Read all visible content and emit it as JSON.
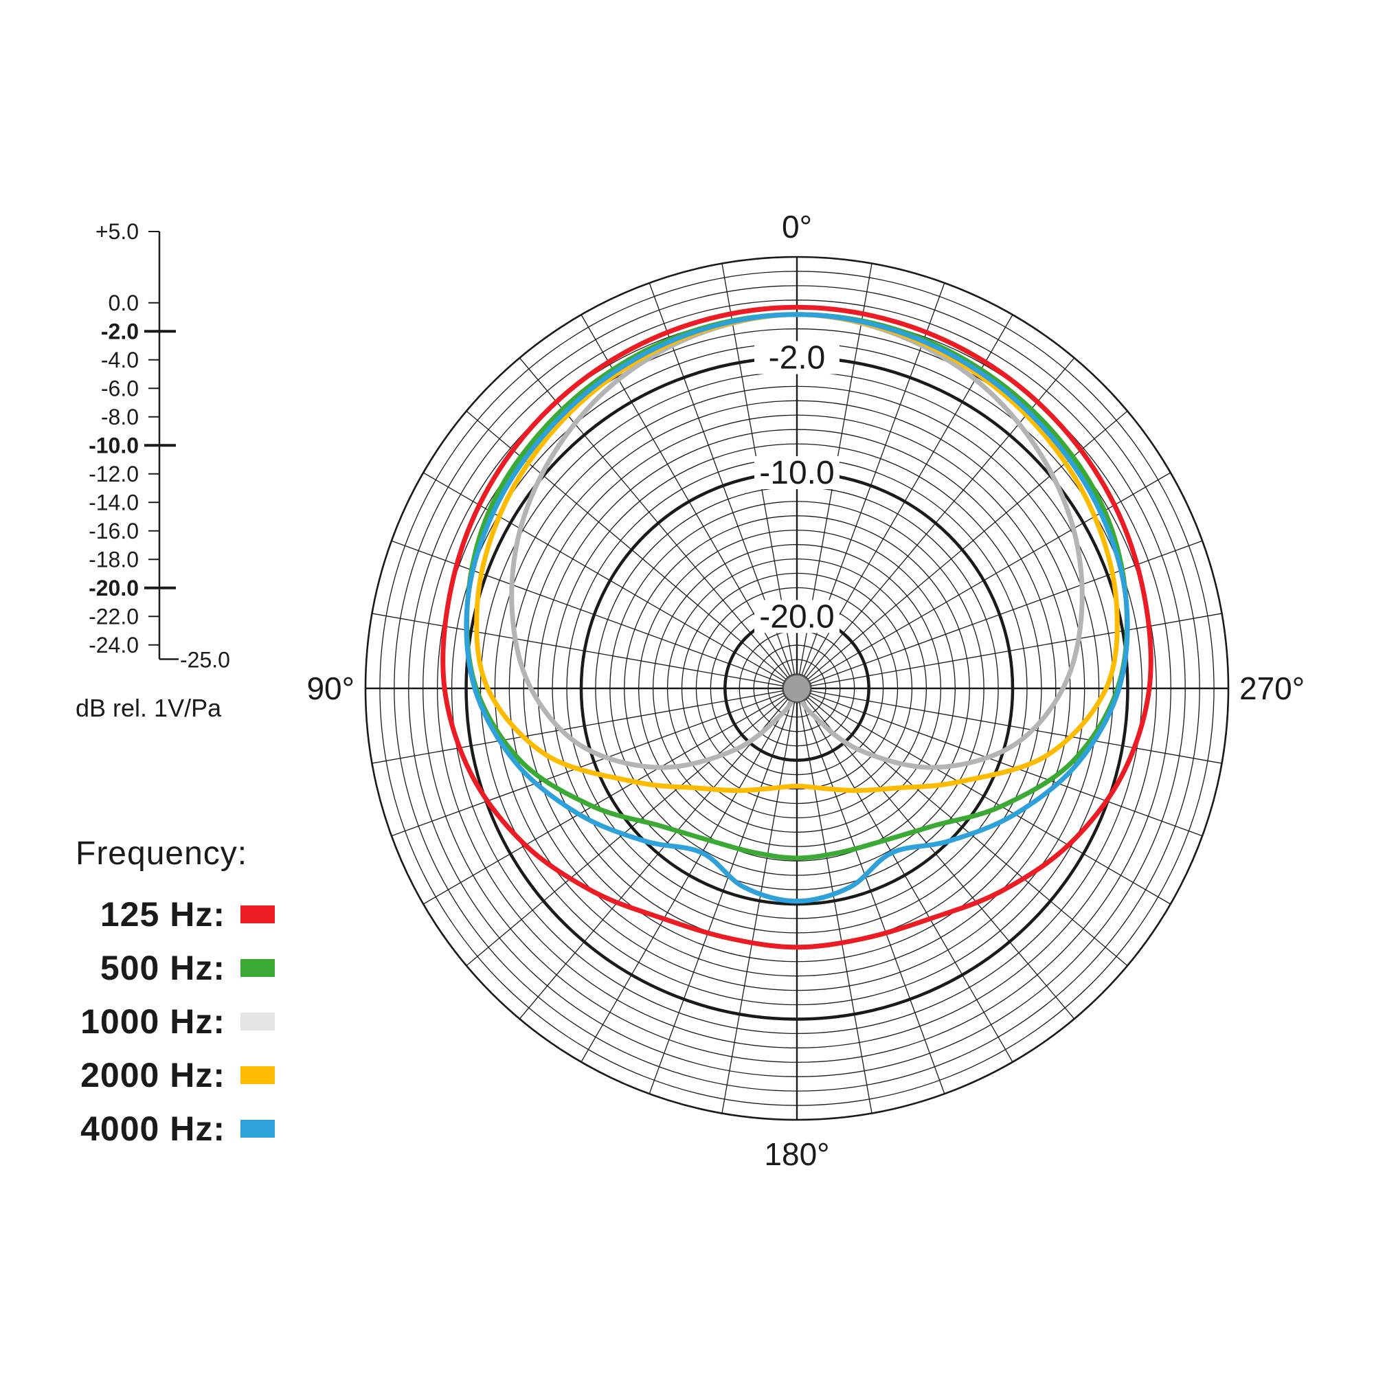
{
  "chart_data": {
    "type": "polar",
    "angle_labels": [
      {
        "angle": 0,
        "text": "0°"
      },
      {
        "angle": 90,
        "text": "90°"
      },
      {
        "angle": 180,
        "text": "180°"
      },
      {
        "angle": 270,
        "text": "270°"
      }
    ],
    "ring_labels": [
      {
        "value": -2.0,
        "text": "-2.0"
      },
      {
        "value": -10.0,
        "text": "-10.0"
      },
      {
        "value": -20.0,
        "text": "-20.0"
      }
    ],
    "rlim": [
      -25,
      5
    ],
    "scale_ticks": [
      {
        "value": 5.0,
        "text": "+5.0",
        "bold": false
      },
      {
        "value": 0.0,
        "text": "0.0",
        "bold": false
      },
      {
        "value": -2.0,
        "text": "-2.0",
        "bold": true
      },
      {
        "value": -4.0,
        "text": "-4.0",
        "bold": false
      },
      {
        "value": -6.0,
        "text": "-6.0",
        "bold": false
      },
      {
        "value": -8.0,
        "text": "-8.0",
        "bold": false
      },
      {
        "value": -10.0,
        "text": "-10.0",
        "bold": true
      },
      {
        "value": -12.0,
        "text": "-12.0",
        "bold": false
      },
      {
        "value": -14.0,
        "text": "-14.0",
        "bold": false
      },
      {
        "value": -16.0,
        "text": "-16.0",
        "bold": false
      },
      {
        "value": -18.0,
        "text": "-18.0",
        "bold": false
      },
      {
        "value": -20.0,
        "text": "-20.0",
        "bold": true
      },
      {
        "value": -22.0,
        "text": "-22.0",
        "bold": false
      },
      {
        "value": -24.0,
        "text": "-24.0",
        "bold": false
      },
      {
        "value": -25.0,
        "text": "-25.0",
        "bold": false
      }
    ],
    "scale_unit": "dB rel. 1V/Pa",
    "legend_title": "Frequency:",
    "grid": true,
    "angles": [
      0,
      15,
      30,
      45,
      60,
      75,
      90,
      105,
      120,
      135,
      150,
      165,
      180
    ],
    "series": [
      {
        "name": "125 Hz:",
        "color": "#ec1c24",
        "values": [
          1.5,
          1.4,
          1.2,
          0.9,
          0.5,
          0.0,
          -0.5,
          -1.6,
          -3.2,
          -5.0,
          -6.5,
          -7.0,
          -7.0
        ]
      },
      {
        "name": "500 Hz:",
        "color": "#3aaa35",
        "values": [
          1.0,
          0.9,
          0.6,
          0.2,
          -0.3,
          -1.3,
          -2.7,
          -5.2,
          -8.6,
          -11.5,
          -12.8,
          -13.2,
          -13.2
        ]
      },
      {
        "name": "1000 Hz:",
        "color": "#b4b4b4",
        "values": [
          1.0,
          0.6,
          -0.2,
          -1.4,
          -2.8,
          -4.5,
          -6.5,
          -9.5,
          -14.0,
          -19.0,
          -23.0,
          -24.6,
          -25.0
        ]
      },
      {
        "name": "2000 Hz:",
        "color": "#ffbb00",
        "values": [
          1.0,
          0.7,
          0.2,
          -0.4,
          -1.1,
          -2.0,
          -3.5,
          -7.0,
          -12.0,
          -15.2,
          -16.8,
          -17.8,
          -18.2
        ]
      },
      {
        "name": "4000 Hz:",
        "color": "#2ea1db",
        "values": [
          1.0,
          0.8,
          0.4,
          -0.1,
          -0.6,
          -1.3,
          -2.6,
          -4.8,
          -7.5,
          -10.0,
          -11.8,
          -10.7,
          -10.2
        ]
      }
    ],
    "legend_swatches": [
      "#ec1c24",
      "#3aaa35",
      "#e4e4e4",
      "#ffbb00",
      "#2ea1db"
    ]
  }
}
